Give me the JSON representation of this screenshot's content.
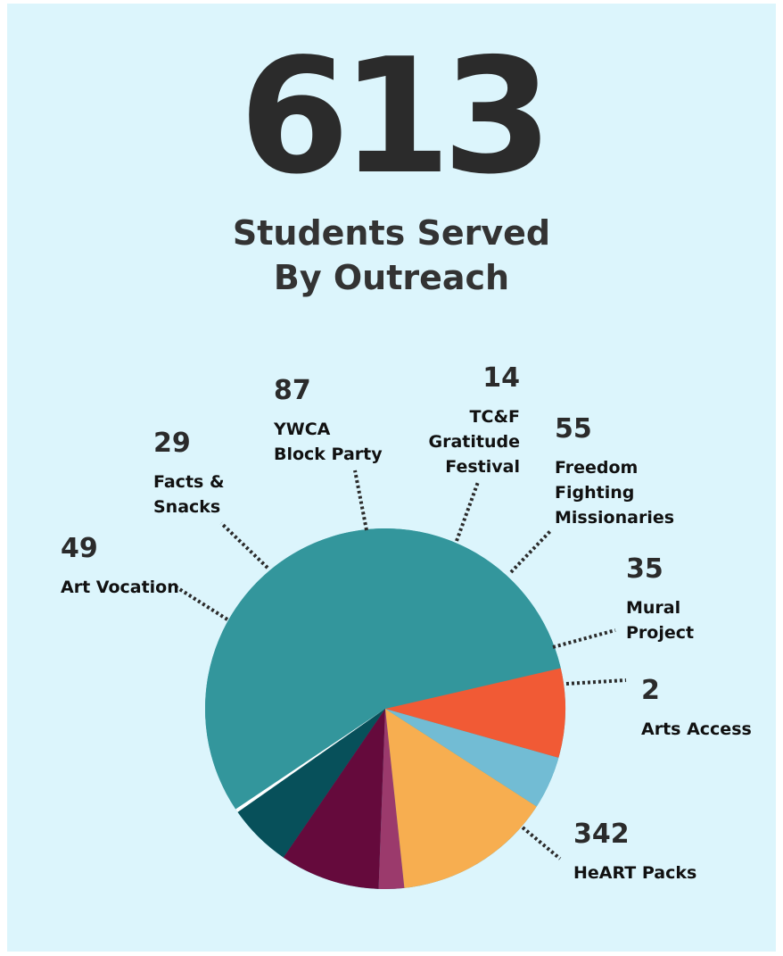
{
  "header": {
    "total": "613",
    "subtitle_line1": "Students Served",
    "subtitle_line2": "By Outreach"
  },
  "chart_data": {
    "type": "pie",
    "title": "613",
    "subtitle": "Students Served By Outreach",
    "start_angle_deg": -13,
    "direction": "counterclockwise",
    "slices": [
      {
        "name": "HeART Packs",
        "value": 342,
        "color": "#33969c"
      },
      {
        "name": "Arts Access",
        "value": 2,
        "color": "#ffffff"
      },
      {
        "name": "Mural Project",
        "value": 35,
        "color": "#07505a"
      },
      {
        "name": "Freedom Fighting Missionaries",
        "value": 55,
        "color": "#650a3c"
      },
      {
        "name": "TC&F Gratitude Festival",
        "value": 14,
        "color": "#9b3a6c"
      },
      {
        "name": "YWCA Block Party",
        "value": 87,
        "color": "#f7ae50"
      },
      {
        "name": "Facts & Snacks",
        "value": 29,
        "color": "#72bcd4"
      },
      {
        "name": "Art Vocation",
        "value": 49,
        "color": "#f15a35"
      }
    ],
    "labels": [
      {
        "value": "342",
        "lines": [
          "HeART Packs"
        ]
      },
      {
        "value": "2",
        "lines": [
          "Arts Access"
        ]
      },
      {
        "value": "35",
        "lines": [
          "Mural",
          "Project"
        ]
      },
      {
        "value": "55",
        "lines": [
          "Freedom",
          "Fighting",
          "Missionaries"
        ]
      },
      {
        "value": "14",
        "lines": [
          "TC&F",
          "Gratitude",
          "Festival"
        ]
      },
      {
        "value": "87",
        "lines": [
          "YWCA",
          "Block Party"
        ]
      },
      {
        "value": "29",
        "lines": [
          "Facts &",
          "Snacks"
        ]
      },
      {
        "value": "49",
        "lines": [
          "Art Vocation"
        ]
      }
    ]
  }
}
